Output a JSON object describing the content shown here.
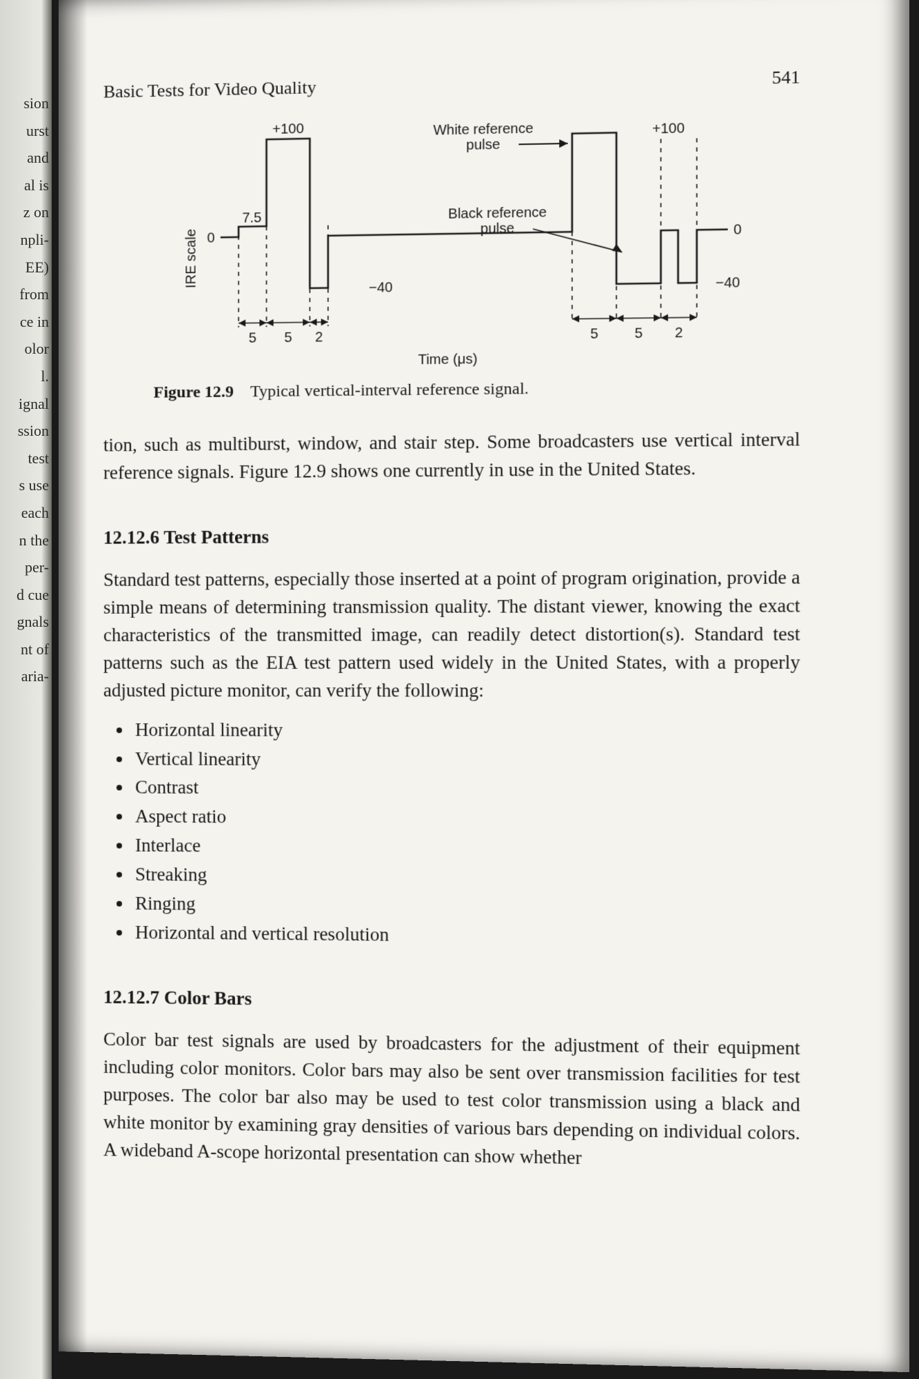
{
  "prev_page_fragments": [
    "sion",
    "",
    "",
    "",
    "",
    "",
    "",
    "",
    "",
    "",
    "urst",
    "and",
    "",
    "",
    "",
    "",
    "",
    "al is",
    "z on",
    "npli-",
    "EE)",
    "from",
    "ce in",
    "olor",
    "l.",
    "ignal",
    "ssion",
    "",
    "",
    "",
    "",
    "",
    "",
    "test",
    "s use",
    "each",
    "n the",
    "per-",
    "d cue",
    "gnals",
    "nt of",
    "aria-"
  ],
  "running_head_left": "Basic Tests for Video Quality",
  "running_head_right": "541",
  "figure": {
    "caption_number": "Figure 12.9",
    "caption_text": "Typical vertical-interval reference signal.",
    "y_axis_label": "IRE scale",
    "x_axis_label": "Time (μs)",
    "left_labels": {
      "top": "+100",
      "mid": "7.5",
      "zero_left": "0",
      "neg": "−40",
      "zero_right": "0",
      "neg_right": "−40"
    },
    "right_labels": {
      "white": "White reference\npulse",
      "black": "Black reference\npulse",
      "top": "+100"
    },
    "bottom_ticks_left": [
      "5",
      "5",
      "2"
    ],
    "bottom_ticks_right": [
      "5",
      "5",
      "2"
    ],
    "stroke_color": "#1a1a1a",
    "stroke_width": 2.6,
    "dash": "6,7",
    "font_family": "Helvetica, Arial, sans-serif",
    "label_fontsize": 20,
    "axis_label_fontsize": 20
  },
  "para1": "tion, such as multiburst, window, and stair step. Some broadcasters use vertical interval reference signals. Figure 12.9 shows one currently in use in the United States.",
  "heading1": "12.12.6  Test Patterns",
  "para2": "Standard test patterns, especially those inserted at a point of program origination, provide a simple means of determining transmission quality. The distant viewer, knowing the exact characteristics of the transmitted image, can readily detect distortion(s). Standard test patterns such as the EIA test pattern used widely in the United States, with a properly adjusted picture monitor, can verify the following:",
  "bullets": [
    "Horizontal linearity",
    "Vertical linearity",
    "Contrast",
    "Aspect ratio",
    "Interlace",
    "Streaking",
    "Ringing",
    "Horizontal and vertical resolution"
  ],
  "heading2": "12.12.7  Color Bars",
  "para3": "Color bar test signals are used by broadcasters for the adjustment of their equipment including color monitors. Color bars may also be sent over transmission facilities for test purposes. The color bar also may be used to test color transmission using a black and white monitor by examining gray densities of various bars depending on individual colors. A wideband A-scope horizontal presentation can show whether"
}
